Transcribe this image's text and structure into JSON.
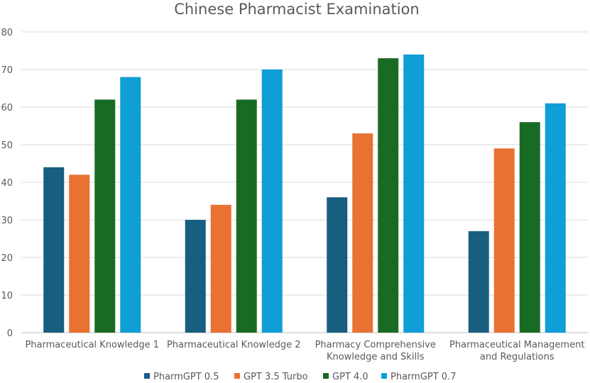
{
  "chart_data": {
    "type": "bar",
    "title": "Chinese Pharmacist Examination",
    "categories": [
      [
        "Pharmaceutical Knowledge 1"
      ],
      [
        "Pharmaceutical Knowledge 2"
      ],
      [
        "Pharmacy Comprehensive",
        "Knowledge and Skills"
      ],
      [
        "Pharmaceutical Management",
        "and Regulations"
      ]
    ],
    "series": [
      {
        "name": "PharmGPT 0.5",
        "color": "#175e80",
        "values": [
          44,
          30,
          36,
          27
        ]
      },
      {
        "name": "GPT 3.5 Turbo",
        "color": "#e97132",
        "values": [
          42,
          34,
          53,
          49
        ]
      },
      {
        "name": "GPT 4.0",
        "color": "#196b24",
        "values": [
          62,
          62,
          73,
          56
        ]
      },
      {
        "name": "PharmGPT 0.7",
        "color": "#0f9ed5",
        "values": [
          68,
          70,
          74,
          61
        ]
      }
    ],
    "ylim": [
      0,
      80
    ],
    "yticks": [
      0,
      10,
      20,
      30,
      40,
      50,
      60,
      70,
      80
    ],
    "grid": true,
    "legend": "bottom"
  }
}
